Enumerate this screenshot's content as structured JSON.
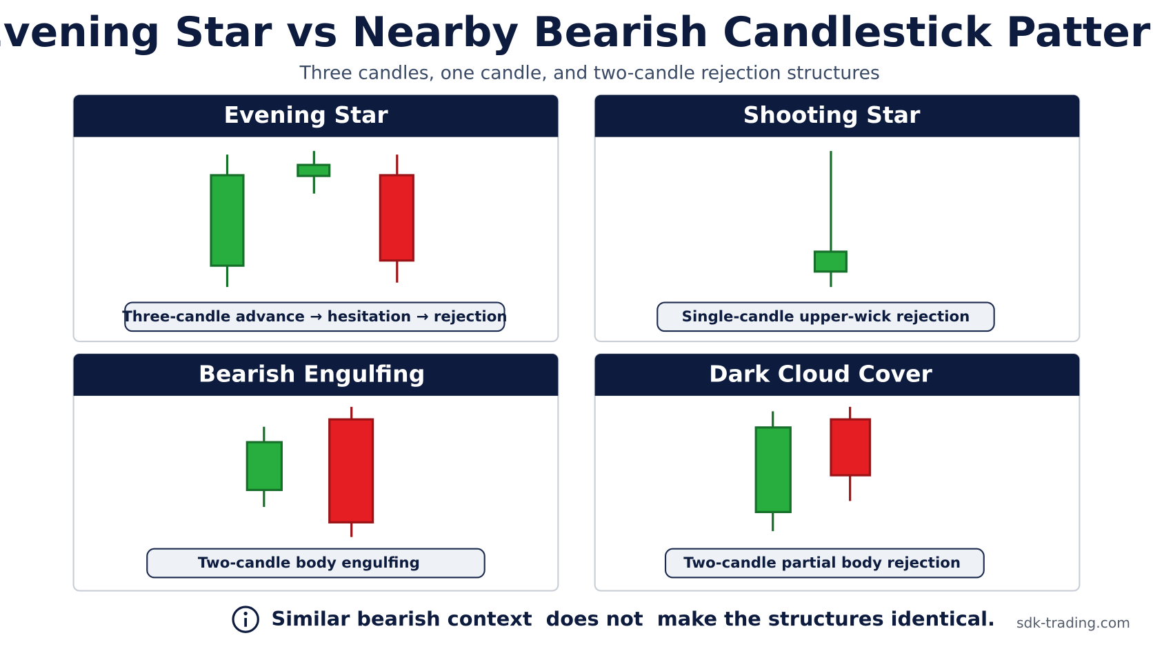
{
  "header": {
    "title": "Evening Star vs Nearby Bearish Candlestick Patterns",
    "subtitle": "Three candles, one candle, and two-candle rejection structures"
  },
  "panels": [
    {
      "title": "Evening Star",
      "caption": "Three-candle advance  →  hesitation → rejection"
    },
    {
      "title": "Shooting Star",
      "caption": "Single-candle upper-wick rejection"
    },
    {
      "title": "Bearish Engulfing",
      "caption": "Two-candle body engulfing"
    },
    {
      "title": "Dark Cloud Cover",
      "caption": "Two-candle partial body rejection"
    }
  ],
  "footer": {
    "note": "Similar bearish context  does not  make the structures identical.",
    "source": "sdk-trading.com"
  }
}
